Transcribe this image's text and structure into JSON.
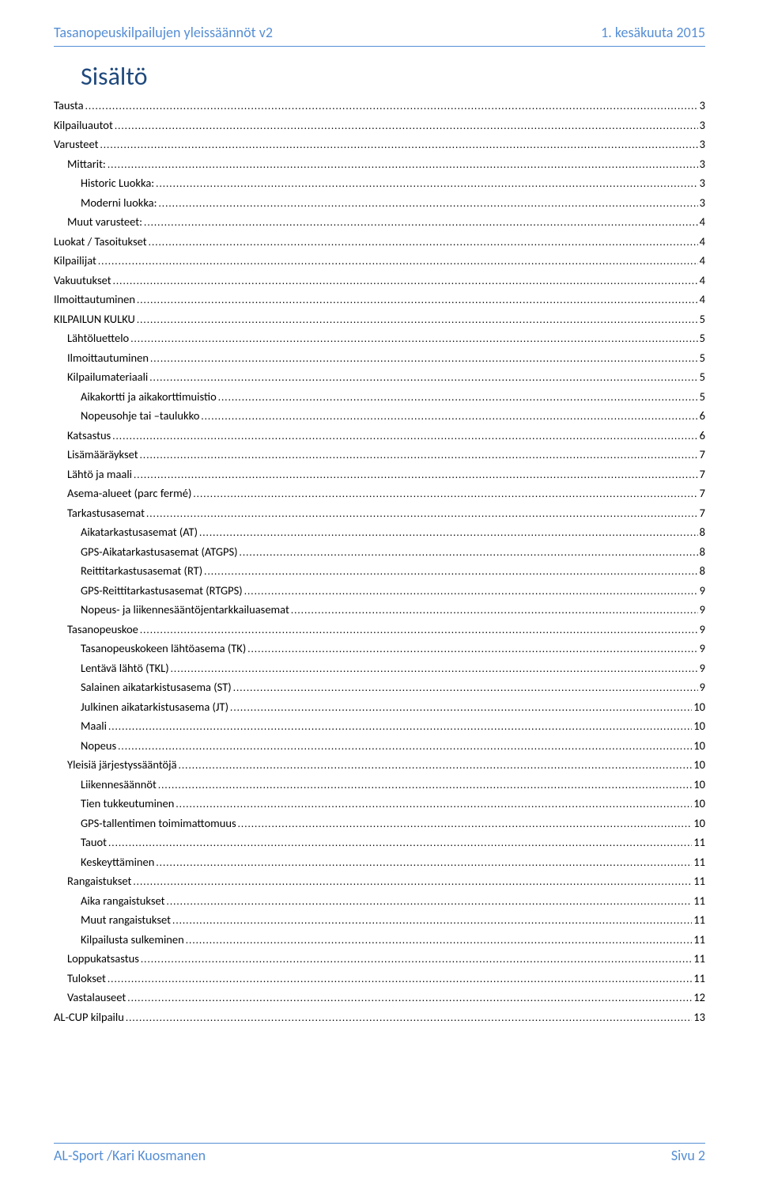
{
  "header": {
    "left": "Tasanopeuskilpailujen yleissäännöt v2",
    "right": "1. kesäkuuta 2015"
  },
  "toc_title": "Sisältö",
  "toc": [
    {
      "label": "Tausta",
      "page": "3",
      "level": 0
    },
    {
      "label": "Kilpailuautot",
      "page": "3",
      "level": 0
    },
    {
      "label": "Varusteet",
      "page": "3",
      "level": 0
    },
    {
      "label": "Mittarit:",
      "page": "3",
      "level": 1
    },
    {
      "label": "Historic Luokka:",
      "page": "3",
      "level": 2
    },
    {
      "label": "Moderni luokka:",
      "page": "3",
      "level": 2
    },
    {
      "label": "Muut varusteet:",
      "page": "4",
      "level": 1
    },
    {
      "label": "Luokat / Tasoitukset",
      "page": "4",
      "level": 0
    },
    {
      "label": "Kilpailijat",
      "page": "4",
      "level": 0
    },
    {
      "label": "Vakuutukset",
      "page": "4",
      "level": 0
    },
    {
      "label": "Ilmoittautuminen",
      "page": "4",
      "level": 0
    },
    {
      "label": "KILPAILUN KULKU",
      "page": "5",
      "level": 0
    },
    {
      "label": "Lähtöluettelo",
      "page": "5",
      "level": 1
    },
    {
      "label": "Ilmoittautuminen",
      "page": "5",
      "level": 1
    },
    {
      "label": "Kilpailumateriaali",
      "page": "5",
      "level": 1
    },
    {
      "label": "Aikakortti ja aikakorttimuistio",
      "page": "5",
      "level": 2
    },
    {
      "label": "Nopeusohje tai –taulukko",
      "page": "6",
      "level": 2
    },
    {
      "label": "Katsastus",
      "page": "6",
      "level": 1
    },
    {
      "label": "Lisämääräykset",
      "page": "7",
      "level": 1
    },
    {
      "label": "Lähtö ja maali",
      "page": "7",
      "level": 1
    },
    {
      "label": "Asema-alueet (parc fermé)",
      "page": "7",
      "level": 1
    },
    {
      "label": "Tarkastusasemat",
      "page": "7",
      "level": 1
    },
    {
      "label": "Aikatarkastusasemat (AT)",
      "page": "8",
      "level": 2
    },
    {
      "label": "GPS-Aikatarkastusasemat (ATGPS)",
      "page": "8",
      "level": 2
    },
    {
      "label": "Reittitarkastusasemat (RT)",
      "page": "8",
      "level": 2
    },
    {
      "label": "GPS-Reittitarkastusasemat (RTGPS)",
      "page": "9",
      "level": 2
    },
    {
      "label": "Nopeus- ja liikennesääntöjentarkkailuasemat",
      "page": "9",
      "level": 2
    },
    {
      "label": "Tasanopeuskoe",
      "page": "9",
      "level": 1
    },
    {
      "label": "Tasanopeuskokeen lähtöasema (TK)",
      "page": "9",
      "level": 2
    },
    {
      "label": "Lentävä lähtö (TKL)",
      "page": "9",
      "level": 2
    },
    {
      "label": "Salainen aikatarkistusasema (ST)",
      "page": "9",
      "level": 2
    },
    {
      "label": "Julkinen aikatarkistusasema (JT)",
      "page": "10",
      "level": 2
    },
    {
      "label": "Maali",
      "page": "10",
      "level": 2
    },
    {
      "label": "Nopeus",
      "page": "10",
      "level": 2
    },
    {
      "label": "Yleisiä järjestyssääntöjä",
      "page": "10",
      "level": 1
    },
    {
      "label": "Liikennesäännöt",
      "page": "10",
      "level": 2
    },
    {
      "label": "Tien tukkeutuminen",
      "page": "10",
      "level": 2
    },
    {
      "label": "GPS-tallentimen toimimattomuus",
      "page": "10",
      "level": 2
    },
    {
      "label": "Tauot",
      "page": "11",
      "level": 2
    },
    {
      "label": "Keskeyttäminen",
      "page": "11",
      "level": 2
    },
    {
      "label": "Rangaistukset",
      "page": "11",
      "level": 1
    },
    {
      "label": "Aika rangaistukset",
      "page": "11",
      "level": 2
    },
    {
      "label": "Muut rangaistukset",
      "page": "11",
      "level": 2
    },
    {
      "label": "Kilpailusta sulkeminen",
      "page": "11",
      "level": 2
    },
    {
      "label": "Loppukatsastus",
      "page": "11",
      "level": 1
    },
    {
      "label": "Tulokset",
      "page": "11",
      "level": 1
    },
    {
      "label": "Vastalauseet",
      "page": "12",
      "level": 1
    },
    {
      "label": "AL-CUP kilpailu",
      "page": "13",
      "level": 0
    }
  ],
  "footer": {
    "left": "AL-Sport /Kari Kuosmanen",
    "right": "Sivu 2"
  },
  "colors": {
    "accent": "#558ed5",
    "heading": "#1f497d",
    "text": "#000000",
    "background": "#ffffff"
  },
  "typography": {
    "body_font": "Calibri",
    "header_fontsize_pt": 14,
    "toc_title_fontsize_pt": 26,
    "toc_fontsize_pt": 11,
    "footer_fontsize_pt": 14
  }
}
